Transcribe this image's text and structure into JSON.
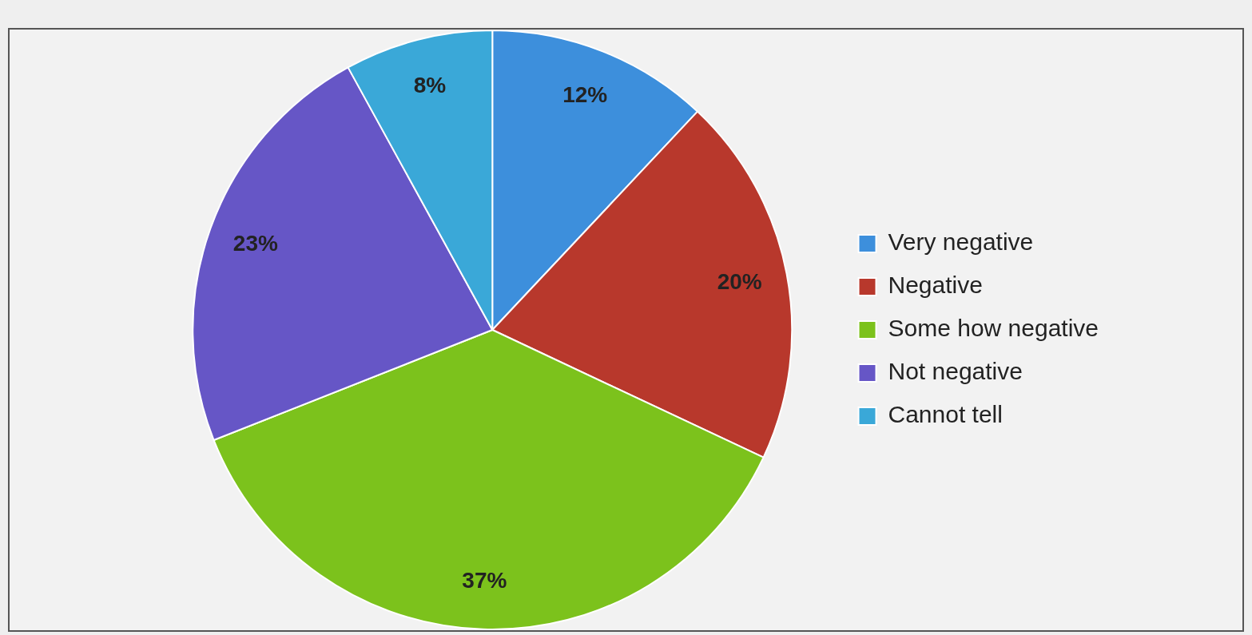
{
  "chart_data": {
    "type": "pie",
    "categories": [
      "Very negative",
      "Negative",
      "Some how negative",
      "Not negative",
      "Cannot tell"
    ],
    "values": [
      12,
      20,
      37,
      23,
      8
    ],
    "value_labels": [
      "12%",
      "20%",
      "37%",
      "23%",
      "8%"
    ],
    "colors": [
      "#3d8fdc",
      "#b8382c",
      "#7cc21c",
      "#6656c6",
      "#3aa8d8"
    ],
    "legend": "right"
  }
}
